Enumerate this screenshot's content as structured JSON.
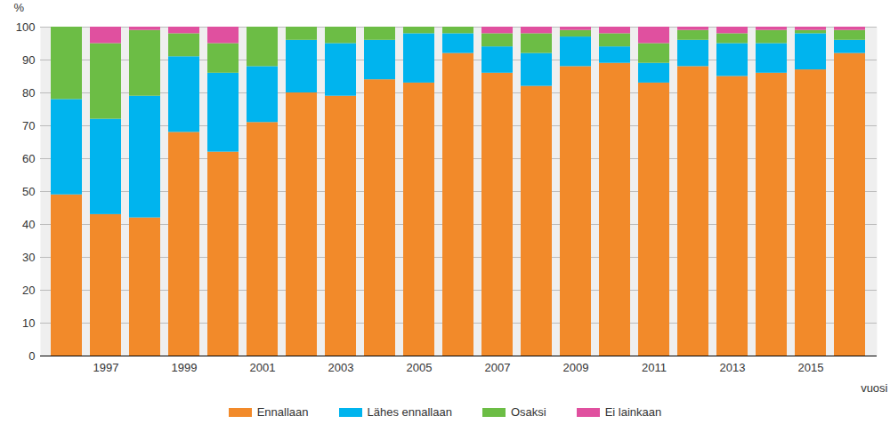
{
  "chart_data": {
    "type": "bar",
    "stacked": true,
    "x_label": "vuosi",
    "y_label": "%",
    "categories": [
      null,
      "1997",
      null,
      "1999",
      null,
      "2001",
      null,
      "2003",
      null,
      "2005",
      null,
      "2007",
      null,
      "2009",
      null,
      "2011",
      null,
      "2013",
      null,
      "2015",
      null
    ],
    "series": [
      {
        "name": "Ennallaan",
        "color": "#f28a2a",
        "values": [
          49,
          43,
          42,
          68,
          62,
          71,
          80,
          79,
          84,
          83,
          92,
          86,
          82,
          88,
          89,
          83,
          88,
          85,
          86,
          87,
          92
        ]
      },
      {
        "name": "Lähes ennallaan",
        "color": "#00b4ee",
        "values": [
          29,
          29,
          37,
          23,
          24,
          17,
          16,
          16,
          12,
          15,
          6,
          8,
          10,
          9,
          5,
          6,
          8,
          10,
          9,
          11,
          4
        ]
      },
      {
        "name": "Osaksi",
        "color": "#6cbd45",
        "values": [
          22,
          23,
          20,
          7,
          9,
          12,
          4,
          5,
          4,
          2,
          2,
          4,
          6,
          2,
          4,
          6,
          3,
          3,
          4,
          1,
          3
        ]
      },
      {
        "name": "Ei lainkaan",
        "color": "#e0509f",
        "values": [
          0,
          5,
          1,
          2,
          5,
          0,
          0,
          0,
          0,
          0,
          0,
          2,
          2,
          1,
          2,
          5,
          1,
          2,
          1,
          1,
          1
        ]
      }
    ],
    "ylim": [
      0,
      100
    ],
    "yticks": [
      0,
      10,
      20,
      30,
      40,
      50,
      60,
      70,
      80,
      90,
      100
    ],
    "grid": true,
    "legend": "bottom"
  }
}
